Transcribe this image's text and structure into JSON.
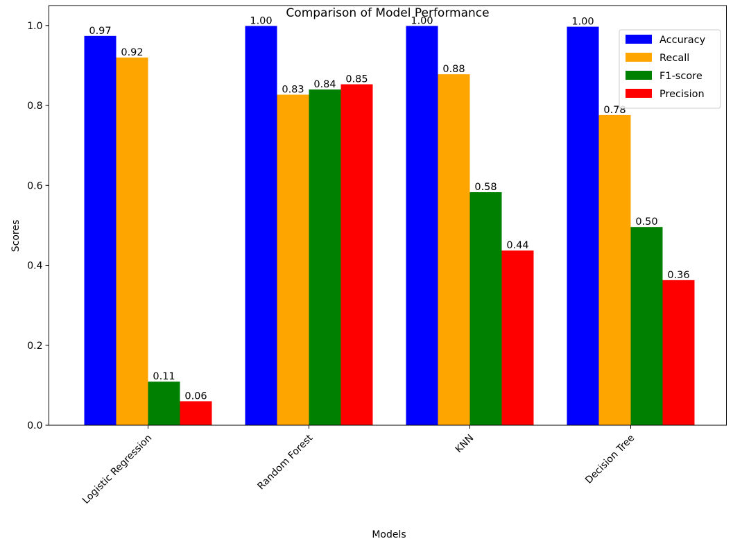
{
  "chart_data": {
    "type": "bar",
    "title": "Comparison of Model Performance",
    "xlabel": "Models",
    "ylabel": "Scores",
    "categories": [
      "Logistic Regression",
      "Random Forest",
      "KNN",
      "Decision Tree"
    ],
    "series": [
      {
        "name": "Accuracy",
        "color": "#0000ff",
        "values": [
          0.974,
          0.999,
          0.999,
          0.997
        ],
        "labels": [
          "0.97",
          "1.00",
          "1.00",
          "1.00"
        ]
      },
      {
        "name": "Recall",
        "color": "#ffa500",
        "values": [
          0.92,
          0.827,
          0.878,
          0.776
        ],
        "labels": [
          "0.92",
          "0.83",
          "0.88",
          "0.78"
        ]
      },
      {
        "name": "F1-score",
        "color": "#008000",
        "values": [
          0.109,
          0.84,
          0.583,
          0.496
        ],
        "labels": [
          "0.11",
          "0.84",
          "0.58",
          "0.50"
        ]
      },
      {
        "name": "Precision",
        "color": "#ff0000",
        "values": [
          0.06,
          0.853,
          0.437,
          0.363
        ],
        "labels": [
          "0.06",
          "0.85",
          "0.44",
          "0.36"
        ]
      }
    ],
    "ylim": [
      0,
      1.05
    ],
    "yticks": [
      "0.0",
      "0.2",
      "0.4",
      "0.6",
      "0.8",
      "1.0"
    ],
    "ytick_values": [
      0.0,
      0.2,
      0.4,
      0.6,
      0.8,
      1.0
    ],
    "xtick_rotation_deg": 45,
    "legend_position": "top-right",
    "grid": false
  }
}
